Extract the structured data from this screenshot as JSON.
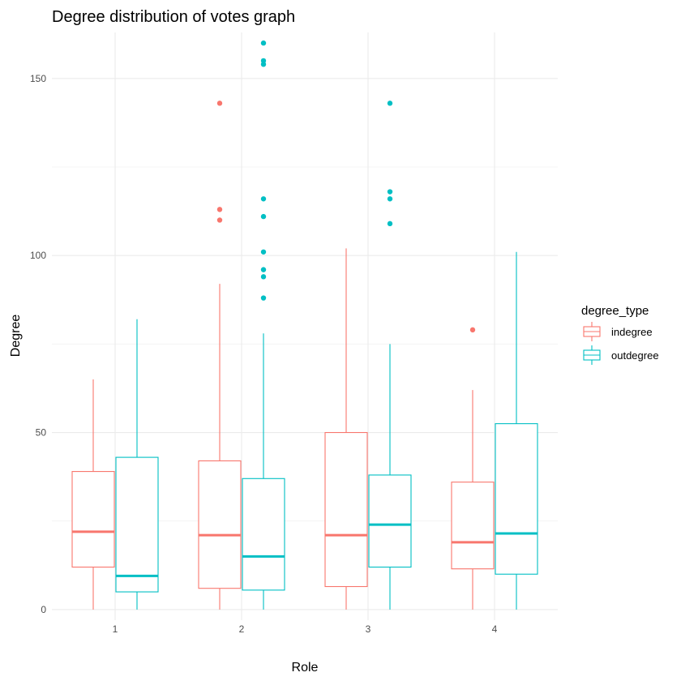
{
  "chart_data": {
    "type": "boxplot",
    "title": "Degree distribution of votes graph",
    "xlabel": "Role",
    "ylabel": "Degree",
    "categories": [
      "1",
      "2",
      "3",
      "4"
    ],
    "ylim": [
      -3,
      163
    ],
    "yticks": [
      0,
      50,
      100,
      150
    ],
    "grid": true,
    "legend": {
      "title": "degree_type",
      "position": "right"
    },
    "series": [
      {
        "name": "indegree",
        "color": "#F8766D",
        "boxes": [
          {
            "category": "1",
            "min": 0,
            "q1": 12,
            "median": 22,
            "q3": 39,
            "max": 65,
            "outliers": []
          },
          {
            "category": "2",
            "min": 0,
            "q1": 6,
            "median": 21,
            "q3": 42,
            "max": 92,
            "outliers": [
              110,
              113,
              143
            ]
          },
          {
            "category": "3",
            "min": 0,
            "q1": 6.5,
            "median": 21,
            "q3": 50,
            "max": 102,
            "outliers": []
          },
          {
            "category": "4",
            "min": 0,
            "q1": 11.5,
            "median": 19,
            "q3": 36,
            "max": 62,
            "outliers": [
              79
            ]
          }
        ]
      },
      {
        "name": "outdegree",
        "color": "#00BFC4",
        "boxes": [
          {
            "category": "1",
            "min": 0,
            "q1": 5,
            "median": 9.5,
            "q3": 43,
            "max": 82,
            "outliers": []
          },
          {
            "category": "2",
            "min": 0,
            "q1": 5.5,
            "median": 15,
            "q3": 37,
            "max": 78,
            "outliers": [
              88,
              94,
              96,
              101,
              111,
              116,
              154,
              155,
              160
            ]
          },
          {
            "category": "3",
            "min": 0,
            "q1": 12,
            "median": 24,
            "q3": 38,
            "max": 75,
            "outliers": [
              109,
              116,
              118,
              143
            ]
          },
          {
            "category": "4",
            "min": 0,
            "q1": 10,
            "median": 21.5,
            "q3": 52.5,
            "max": 101,
            "outliers": []
          }
        ]
      }
    ]
  }
}
